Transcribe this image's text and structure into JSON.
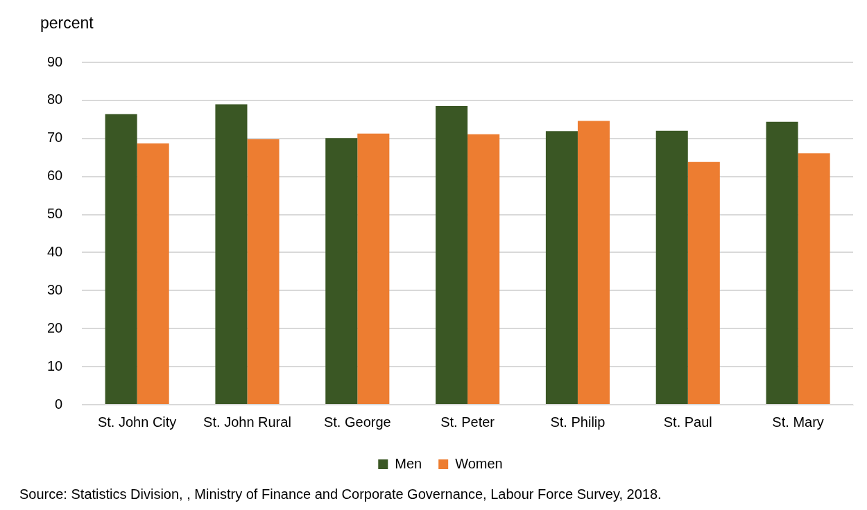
{
  "chart_data": {
    "type": "bar",
    "ylabel": "percent",
    "categories": [
      "St. John City",
      "St. John Rural",
      "St. George",
      "St. Peter",
      "St. Philip",
      "St. Paul",
      "St. Mary"
    ],
    "series": [
      {
        "name": "Men",
        "color": "#3a5724",
        "values": [
          76.4,
          79.0,
          70.1,
          78.5,
          71.9,
          72.0,
          74.4
        ]
      },
      {
        "name": "Women",
        "color": "#ed7d31",
        "values": [
          68.7,
          69.8,
          71.3,
          71.1,
          74.6,
          63.8,
          66.1
        ]
      }
    ],
    "ylim": [
      0,
      90
    ],
    "yticks": [
      0,
      10,
      20,
      30,
      40,
      50,
      60,
      70,
      80,
      90
    ],
    "grid": "y",
    "legend": "bottom",
    "annotations": [
      "Source: Statistics Division, , Ministry of Finance and Corporate Governance, Labour Force Survey, 2018."
    ]
  }
}
